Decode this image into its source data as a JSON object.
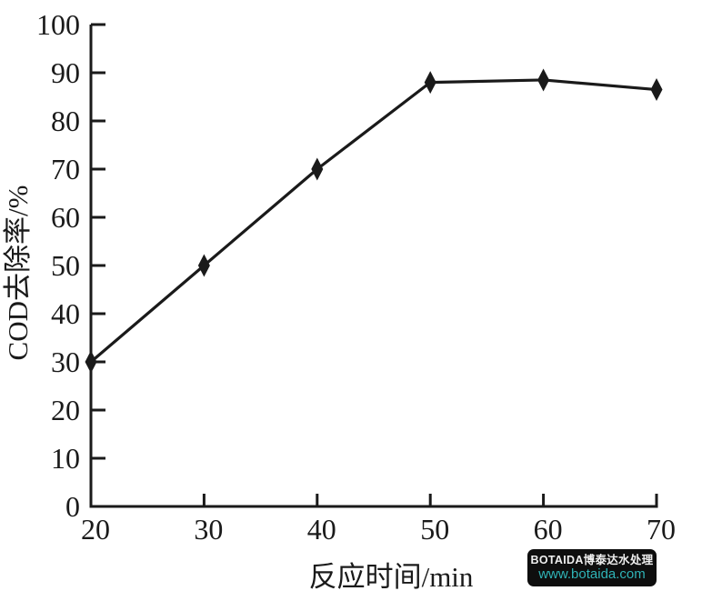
{
  "chart_data": {
    "type": "line",
    "title": "",
    "x": [
      20,
      30,
      40,
      50,
      60,
      70
    ],
    "series": [
      {
        "name": "COD去除率",
        "values": [
          30,
          50,
          70,
          88,
          88.5,
          86.5
        ],
        "color": "#1a1a1a",
        "marker": "diamond"
      }
    ],
    "xlabel": "反应时间/min",
    "ylabel": "COD去除率/%",
    "xlim": [
      20,
      70
    ],
    "ylim": [
      0,
      100
    ],
    "x_ticks": [
      "20",
      "30",
      "40",
      "50",
      "60",
      "70"
    ],
    "y_ticks": [
      "0",
      "10",
      "20",
      "30",
      "40",
      "50",
      "60",
      "70",
      "80",
      "90",
      "100"
    ],
    "grid": false,
    "legend_position": "none",
    "axis_color": "#1a1a1a"
  },
  "watermark": {
    "line1": "BOTAIDA博泰达水处理",
    "line2": "www.botaida.com",
    "bg_color": "#0e0e0e",
    "line1_color": "#efefef",
    "line2_color": "#2fb3b6"
  }
}
